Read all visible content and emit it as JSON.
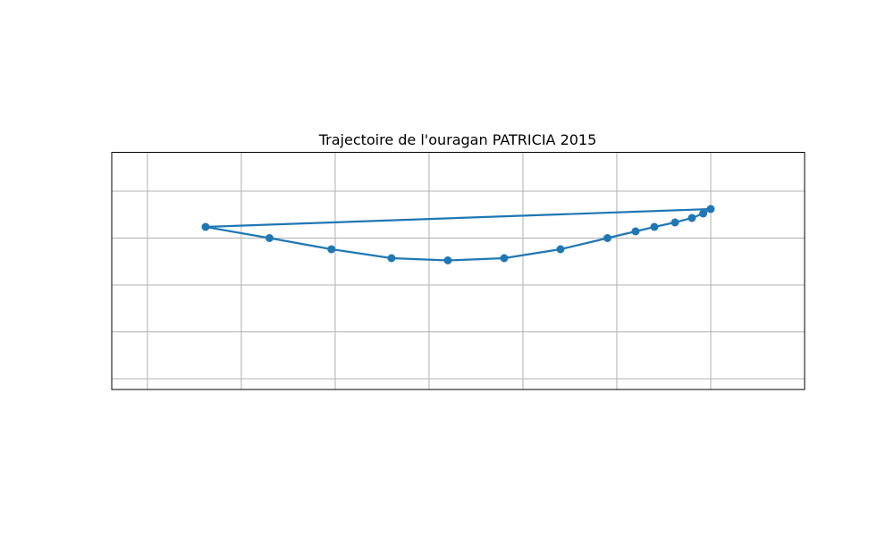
{
  "chart_data": {
    "type": "line",
    "title": "Trajectoire de l'ouragan PATRICIA 2015",
    "xlabel": "",
    "ylabel": "",
    "x_ticks_shown": false,
    "y_ticks_shown": false,
    "grid": true,
    "xlim": [
      -18.8,
      18.1
    ],
    "ylim": [
      -3.14,
      2.17
    ],
    "x_gridlines": [
      -16.9,
      -11.9,
      -6.9,
      -1.9,
      3.1,
      8.1,
      13.1
    ],
    "y_gridlines": [
      -2.9,
      -1.85,
      -0.8,
      0.25,
      1.3
    ],
    "marker": "circle",
    "color": "#1f77b4",
    "series": [
      {
        "x": [
          -13.8,
          -10.4,
          -7.1,
          -3.9,
          -0.9,
          2.1,
          5.1,
          7.6,
          9.1,
          10.1,
          11.2,
          12.1,
          12.7,
          13.1
        ],
        "y": [
          0.5,
          0.25,
          0.0,
          -0.2,
          -0.25,
          -0.2,
          0.0,
          0.25,
          0.4,
          0.5,
          0.6,
          0.7,
          0.8,
          0.9
        ],
        "closed": true
      }
    ]
  }
}
